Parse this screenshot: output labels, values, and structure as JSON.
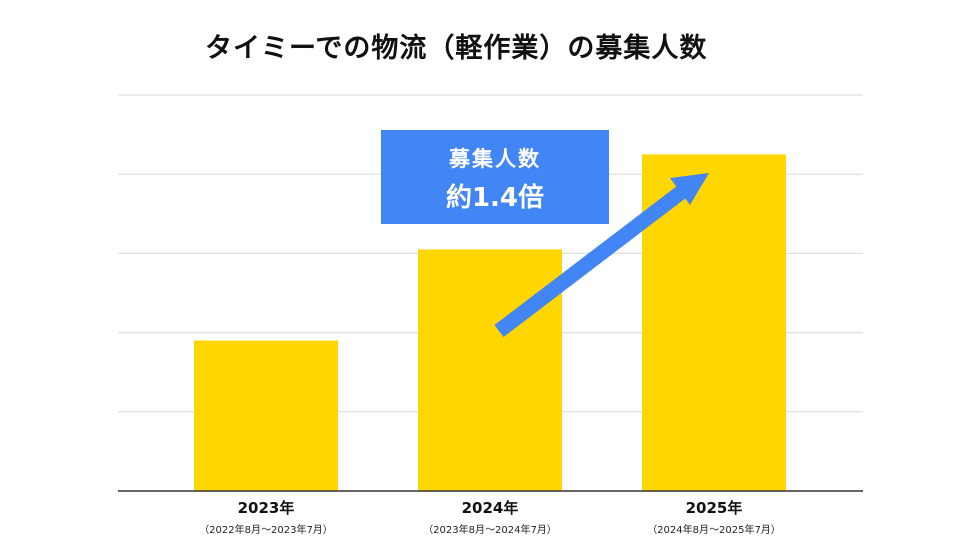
{
  "title": "タイミーでの物流（軽作業）の募集人数",
  "callout": {
    "line1": "募集人数",
    "line2": "約1.4倍"
  },
  "colors": {
    "bar": "#FFD600",
    "accent": "#4285F4",
    "grid": "#D9D9D9",
    "axis": "#333333"
  },
  "chart_data": {
    "type": "bar",
    "title": "タイミーでの物流（軽作業）の募集人数",
    "categories": [
      "2023年",
      "2024年",
      "2025年"
    ],
    "category_ranges": [
      "（2022年8月～2023年7月）",
      "（2023年8月～2024年7月）",
      "（2024年8月～2025年7月）"
    ],
    "values": [
      1.9,
      3.05,
      4.25
    ],
    "ylim": [
      0,
      5
    ],
    "y_ticks_labeled": false,
    "grid": true,
    "xlabel": "",
    "ylabel": "",
    "annotation": {
      "text": [
        "募集人数",
        "約1.4倍"
      ],
      "arrow": "2024→2025 rising"
    }
  }
}
